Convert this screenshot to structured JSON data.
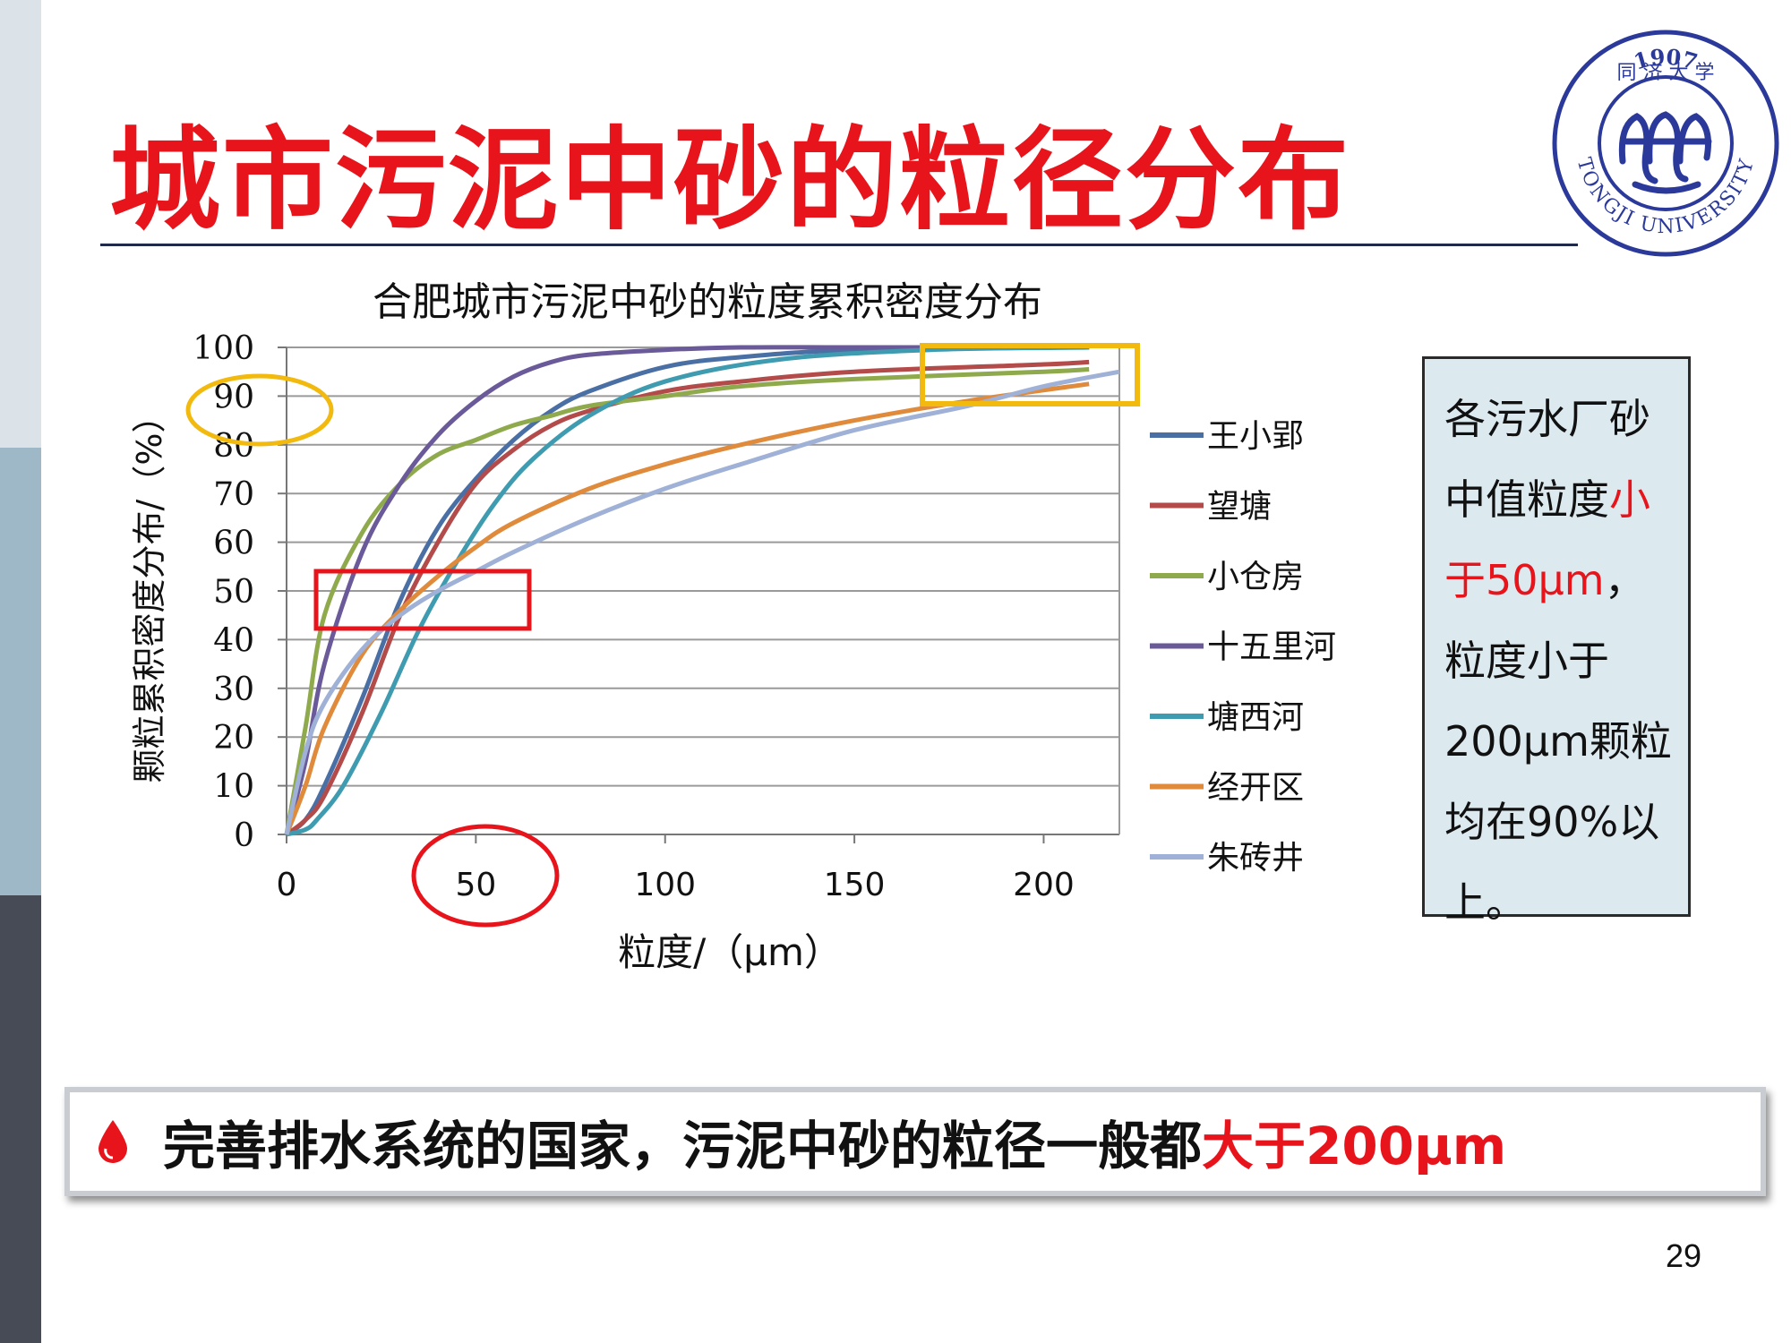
{
  "slide": {
    "title": "城市污泥中砂的粒径分布",
    "page_number": "29"
  },
  "logo": {
    "year": "1907",
    "text_top": "同 济 大 学",
    "text_bottom": "TONGJI UNIVERSITY"
  },
  "chart_data": {
    "type": "line",
    "title": "合肥城市污泥中砂的粒度累积密度分布",
    "xlabel": "粒度/（μm）",
    "ylabel": "颗粒累积密度分布/（%）",
    "xlim": [
      0,
      220
    ],
    "ylim": [
      0,
      100
    ],
    "x_ticks": [
      0,
      50,
      100,
      150,
      200
    ],
    "y_ticks": [
      0,
      10,
      20,
      30,
      40,
      50,
      60,
      70,
      80,
      90,
      100
    ],
    "grid": "horizontal",
    "legend_position": "right",
    "series": [
      {
        "name": "王小郢",
        "color": "#4a6fa5",
        "x": [
          0,
          5,
          10,
          20,
          30,
          40,
          50,
          60,
          70,
          80,
          100,
          120,
          150,
          200,
          212
        ],
        "y": [
          0,
          3,
          10,
          28,
          48,
          63,
          73,
          81,
          87,
          91,
          96,
          98,
          99.5,
          100,
          100
        ]
      },
      {
        "name": "望塘",
        "color": "#b34b4a",
        "x": [
          0,
          5,
          10,
          20,
          30,
          40,
          50,
          60,
          70,
          80,
          100,
          120,
          150,
          200,
          212
        ],
        "y": [
          0,
          3,
          8,
          25,
          45,
          60,
          72,
          79,
          84,
          87,
          91,
          93,
          95,
          96.5,
          97
        ]
      },
      {
        "name": "小仓房",
        "color": "#8faa4c",
        "x": [
          0,
          5,
          10,
          20,
          30,
          40,
          50,
          60,
          70,
          80,
          100,
          120,
          150,
          200,
          212
        ],
        "y": [
          0,
          22,
          45,
          62,
          72,
          78,
          81,
          84,
          86,
          88,
          90,
          92,
          93.5,
          95,
          95.5
        ]
      },
      {
        "name": "十五里河",
        "color": "#6b5a9a",
        "x": [
          0,
          5,
          10,
          20,
          30,
          40,
          50,
          60,
          70,
          80,
          100,
          120,
          150,
          200,
          212
        ],
        "y": [
          0,
          15,
          35,
          58,
          72,
          82,
          89,
          94,
          97,
          98.5,
          99.5,
          100,
          100,
          100,
          100
        ]
      },
      {
        "name": "塘西河",
        "color": "#3f9bb0",
        "x": [
          0,
          5,
          8,
          15,
          25,
          35,
          45,
          55,
          65,
          80,
          100,
          130,
          170,
          212
        ],
        "y": [
          0,
          1,
          3,
          10,
          25,
          42,
          56,
          68,
          77,
          86,
          93,
          97.5,
          99.5,
          100
        ]
      },
      {
        "name": "经开区",
        "color": "#e08a3c",
        "x": [
          0,
          5,
          10,
          20,
          30,
          40,
          50,
          60,
          80,
          100,
          120,
          150,
          180,
          212
        ],
        "y": [
          0,
          10,
          22,
          37,
          46,
          53,
          59,
          64,
          71,
          76,
          80,
          85,
          89,
          92.5
        ]
      },
      {
        "name": "朱砖井",
        "color": "#9fb1d6",
        "x": [
          0,
          5,
          10,
          20,
          30,
          40,
          50,
          60,
          80,
          100,
          120,
          150,
          180,
          200,
          220
        ],
        "y": [
          0,
          17,
          27,
          38,
          45,
          50,
          54,
          58,
          65,
          71,
          76,
          83,
          88,
          92,
          95
        ]
      }
    ]
  },
  "note": {
    "line1": "各污水厂砂",
    "line2_a": "中值粒度",
    "line2_b": "小",
    "line3_a": "于50μm",
    "line3_b": "，",
    "line4": "粒度小于",
    "line5": "200μm颗粒",
    "line6": "均在90%以",
    "line7": "上。"
  },
  "banner": {
    "text": "完善排水系统的国家，污泥中砂的粒径一般都",
    "highlight": "大于200μm"
  },
  "colors": {
    "accent_red": "#e8141c",
    "highlight_yellow": "#f2b90f",
    "note_bg": "#dce9ef"
  }
}
